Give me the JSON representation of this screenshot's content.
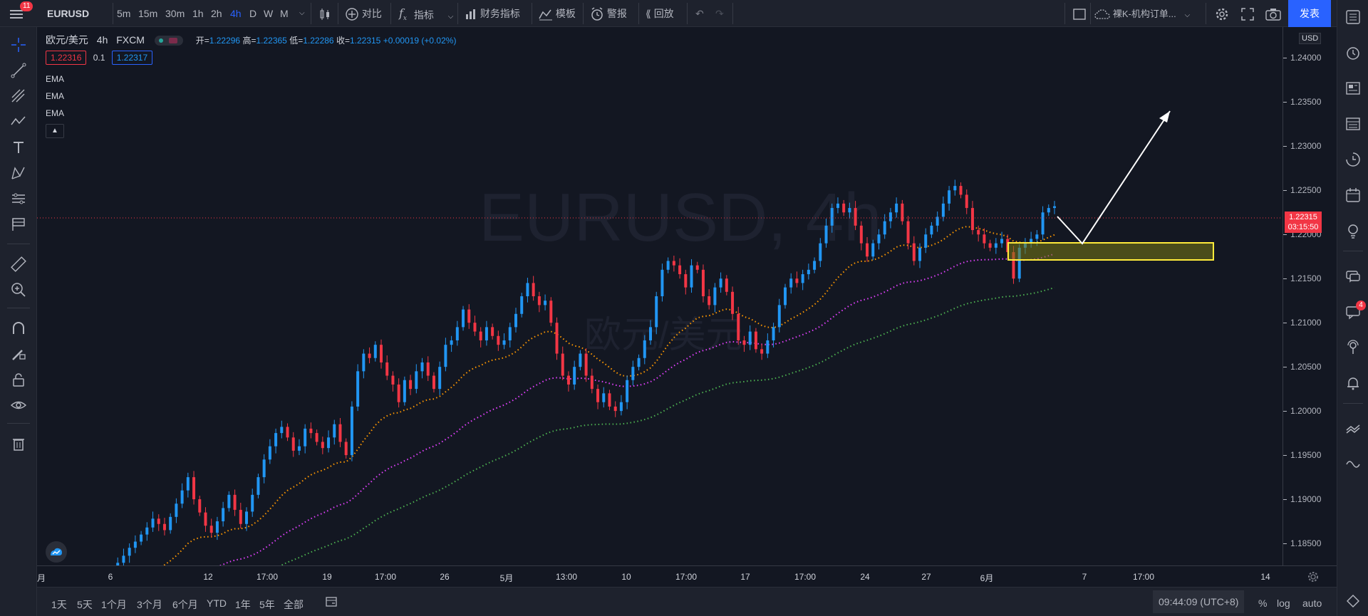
{
  "toolbar": {
    "menu_badge": "11",
    "symbol": "EURUSD",
    "timeframes": [
      "5m",
      "15m",
      "30m",
      "1h",
      "2h",
      "4h",
      "D",
      "W",
      "M"
    ],
    "active_timeframe": "4h",
    "compare_label": "对比",
    "indicators_label": "指标",
    "financials_label": "财务指标",
    "templates_label": "模板",
    "alert_label": "警报",
    "replay_label": "回放",
    "layout_name": "裸K-机构订单...",
    "publish_label": "发表"
  },
  "legend": {
    "title": "欧元/美元",
    "interval": "4h",
    "exchange": "FXCM",
    "open_label": "开=",
    "open": "1.22296",
    "high_label": "高=",
    "high": "1.22365",
    "low_label": "低=",
    "low": "1.22286",
    "close_label": "收=",
    "close": "1.22315",
    "change": "+0.00019 (+0.02%)",
    "bid": "1.22316",
    "spread": "0.1",
    "ask": "1.22317",
    "ema_labels": [
      "EMA",
      "EMA",
      "EMA"
    ]
  },
  "watermark": {
    "symbol": "EURUSD, 4h",
    "name": "欧元/美元"
  },
  "price_axis": {
    "currency": "USD",
    "ticks": [
      "1.24000",
      "1.23500",
      "1.23000",
      "1.22500",
      "1.22000",
      "1.21500",
      "1.21000",
      "1.20500",
      "1.20000",
      "1.19500",
      "1.19000",
      "1.18500"
    ],
    "last_price": "1.22315",
    "countdown": "03:15:50"
  },
  "time_axis": {
    "ticks": [
      "月",
      "6",
      "12",
      "17:00",
      "19",
      "17:00",
      "26",
      "5月",
      "13:00",
      "10",
      "17:00",
      "17",
      "17:00",
      "24",
      "27",
      "6月",
      "7",
      "17:00",
      "14"
    ]
  },
  "bottom": {
    "ranges": [
      "1天",
      "5天",
      "1个月",
      "3个月",
      "6个月",
      "YTD",
      "1年",
      "5年",
      "全部"
    ],
    "clock": "09:44:09 (UTC+8)",
    "percent": "%",
    "log": "log",
    "auto": "auto"
  },
  "right_panel": {
    "chat_badge": "4"
  },
  "colors": {
    "bull": "#2196f3",
    "bear": "#f23645",
    "ema_fast": "#ff9800",
    "ema_mid": "#e040fb",
    "ema_slow": "#4caf50",
    "zone": "#ffeb3b",
    "accent": "#2962ff",
    "publish": "#2962ff"
  },
  "chart_data": {
    "type": "candlestick",
    "ylim": [
      1.1825,
      1.2435
    ],
    "candles_per_point": 1,
    "closes": [
      1.182,
      1.1828,
      1.1836,
      1.1845,
      1.1852,
      1.186,
      1.1868,
      1.1878,
      1.1872,
      1.1865,
      1.188,
      1.1895,
      1.191,
      1.1925,
      1.19,
      1.1885,
      1.187,
      1.1862,
      1.1875,
      1.189,
      1.1905,
      1.1888,
      1.1872,
      1.1886,
      1.1905,
      1.1925,
      1.1945,
      1.196,
      1.1975,
      1.1982,
      1.197,
      1.1955,
      1.196,
      1.198,
      1.1975,
      1.1965,
      1.1958,
      1.197,
      1.1985,
      1.1965,
      1.195,
      1.2005,
      1.2045,
      1.2065,
      1.206,
      1.2075,
      1.2055,
      1.204,
      1.203,
      1.201,
      1.2035,
      1.2025,
      1.2045,
      1.2055,
      1.204,
      1.2025,
      1.205,
      1.2075,
      1.208,
      1.2095,
      1.2115,
      1.21,
      1.209,
      1.208,
      1.2095,
      1.2085,
      1.2075,
      1.208,
      1.2095,
      1.211,
      1.213,
      1.2145,
      1.213,
      1.212,
      1.2125,
      1.21,
      1.2065,
      1.204,
      1.203,
      1.205,
      1.2065,
      1.204,
      1.2025,
      1.201,
      1.202,
      1.2005,
      1.2,
      1.201,
      1.2035,
      1.205,
      1.206,
      1.208,
      1.2095,
      1.213,
      1.216,
      1.217,
      1.2165,
      1.2155,
      1.214,
      1.2165,
      1.216,
      1.213,
      1.212,
      1.214,
      1.215,
      1.2135,
      1.211,
      1.208,
      1.2075,
      1.209,
      1.207,
      1.2065,
      1.208,
      1.2095,
      1.212,
      1.214,
      1.215,
      1.2145,
      1.2155,
      1.216,
      1.217,
      1.219,
      1.221,
      1.223,
      1.2235,
      1.2225,
      1.223,
      1.221,
      1.219,
      1.2175,
      1.219,
      1.22,
      1.2215,
      1.2225,
      1.2235,
      1.2215,
      1.219,
      1.217,
      1.2185,
      1.22,
      1.221,
      1.222,
      1.2235,
      1.225,
      1.2255,
      1.2245,
      1.223,
      1.2205,
      1.22,
      1.219,
      1.2185,
      1.219,
      1.2195,
      1.218,
      1.215,
      1.2185,
      1.219,
      1.2195,
      1.22,
      1.2225,
      1.223,
      1.2232
    ]
  }
}
